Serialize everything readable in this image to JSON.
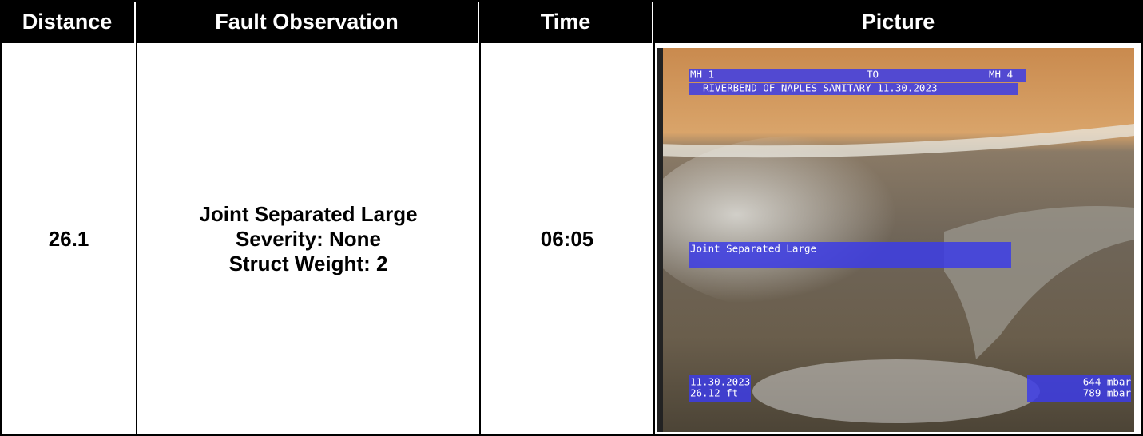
{
  "table": {
    "headers": [
      "Distance",
      "Fault Observation",
      "Time",
      "Picture"
    ],
    "rows": [
      {
        "distance": "26.1",
        "observation": [
          "Joint Separated Large",
          "Severity: None",
          "Struct Weight: 2"
        ],
        "time": "06:05"
      }
    ]
  },
  "picture_overlay": {
    "start_manhole": "MH 1",
    "direction": "TO",
    "end_manhole": "MH 4",
    "project": "RIVERBEND OF NAPLES SANITARY 11.30.2023",
    "observation": "Joint Separated Large",
    "date": "11.30.2023",
    "distance": "26.12 ft",
    "pressure_1": "644 mbar",
    "pressure_2": "789 mbar"
  }
}
